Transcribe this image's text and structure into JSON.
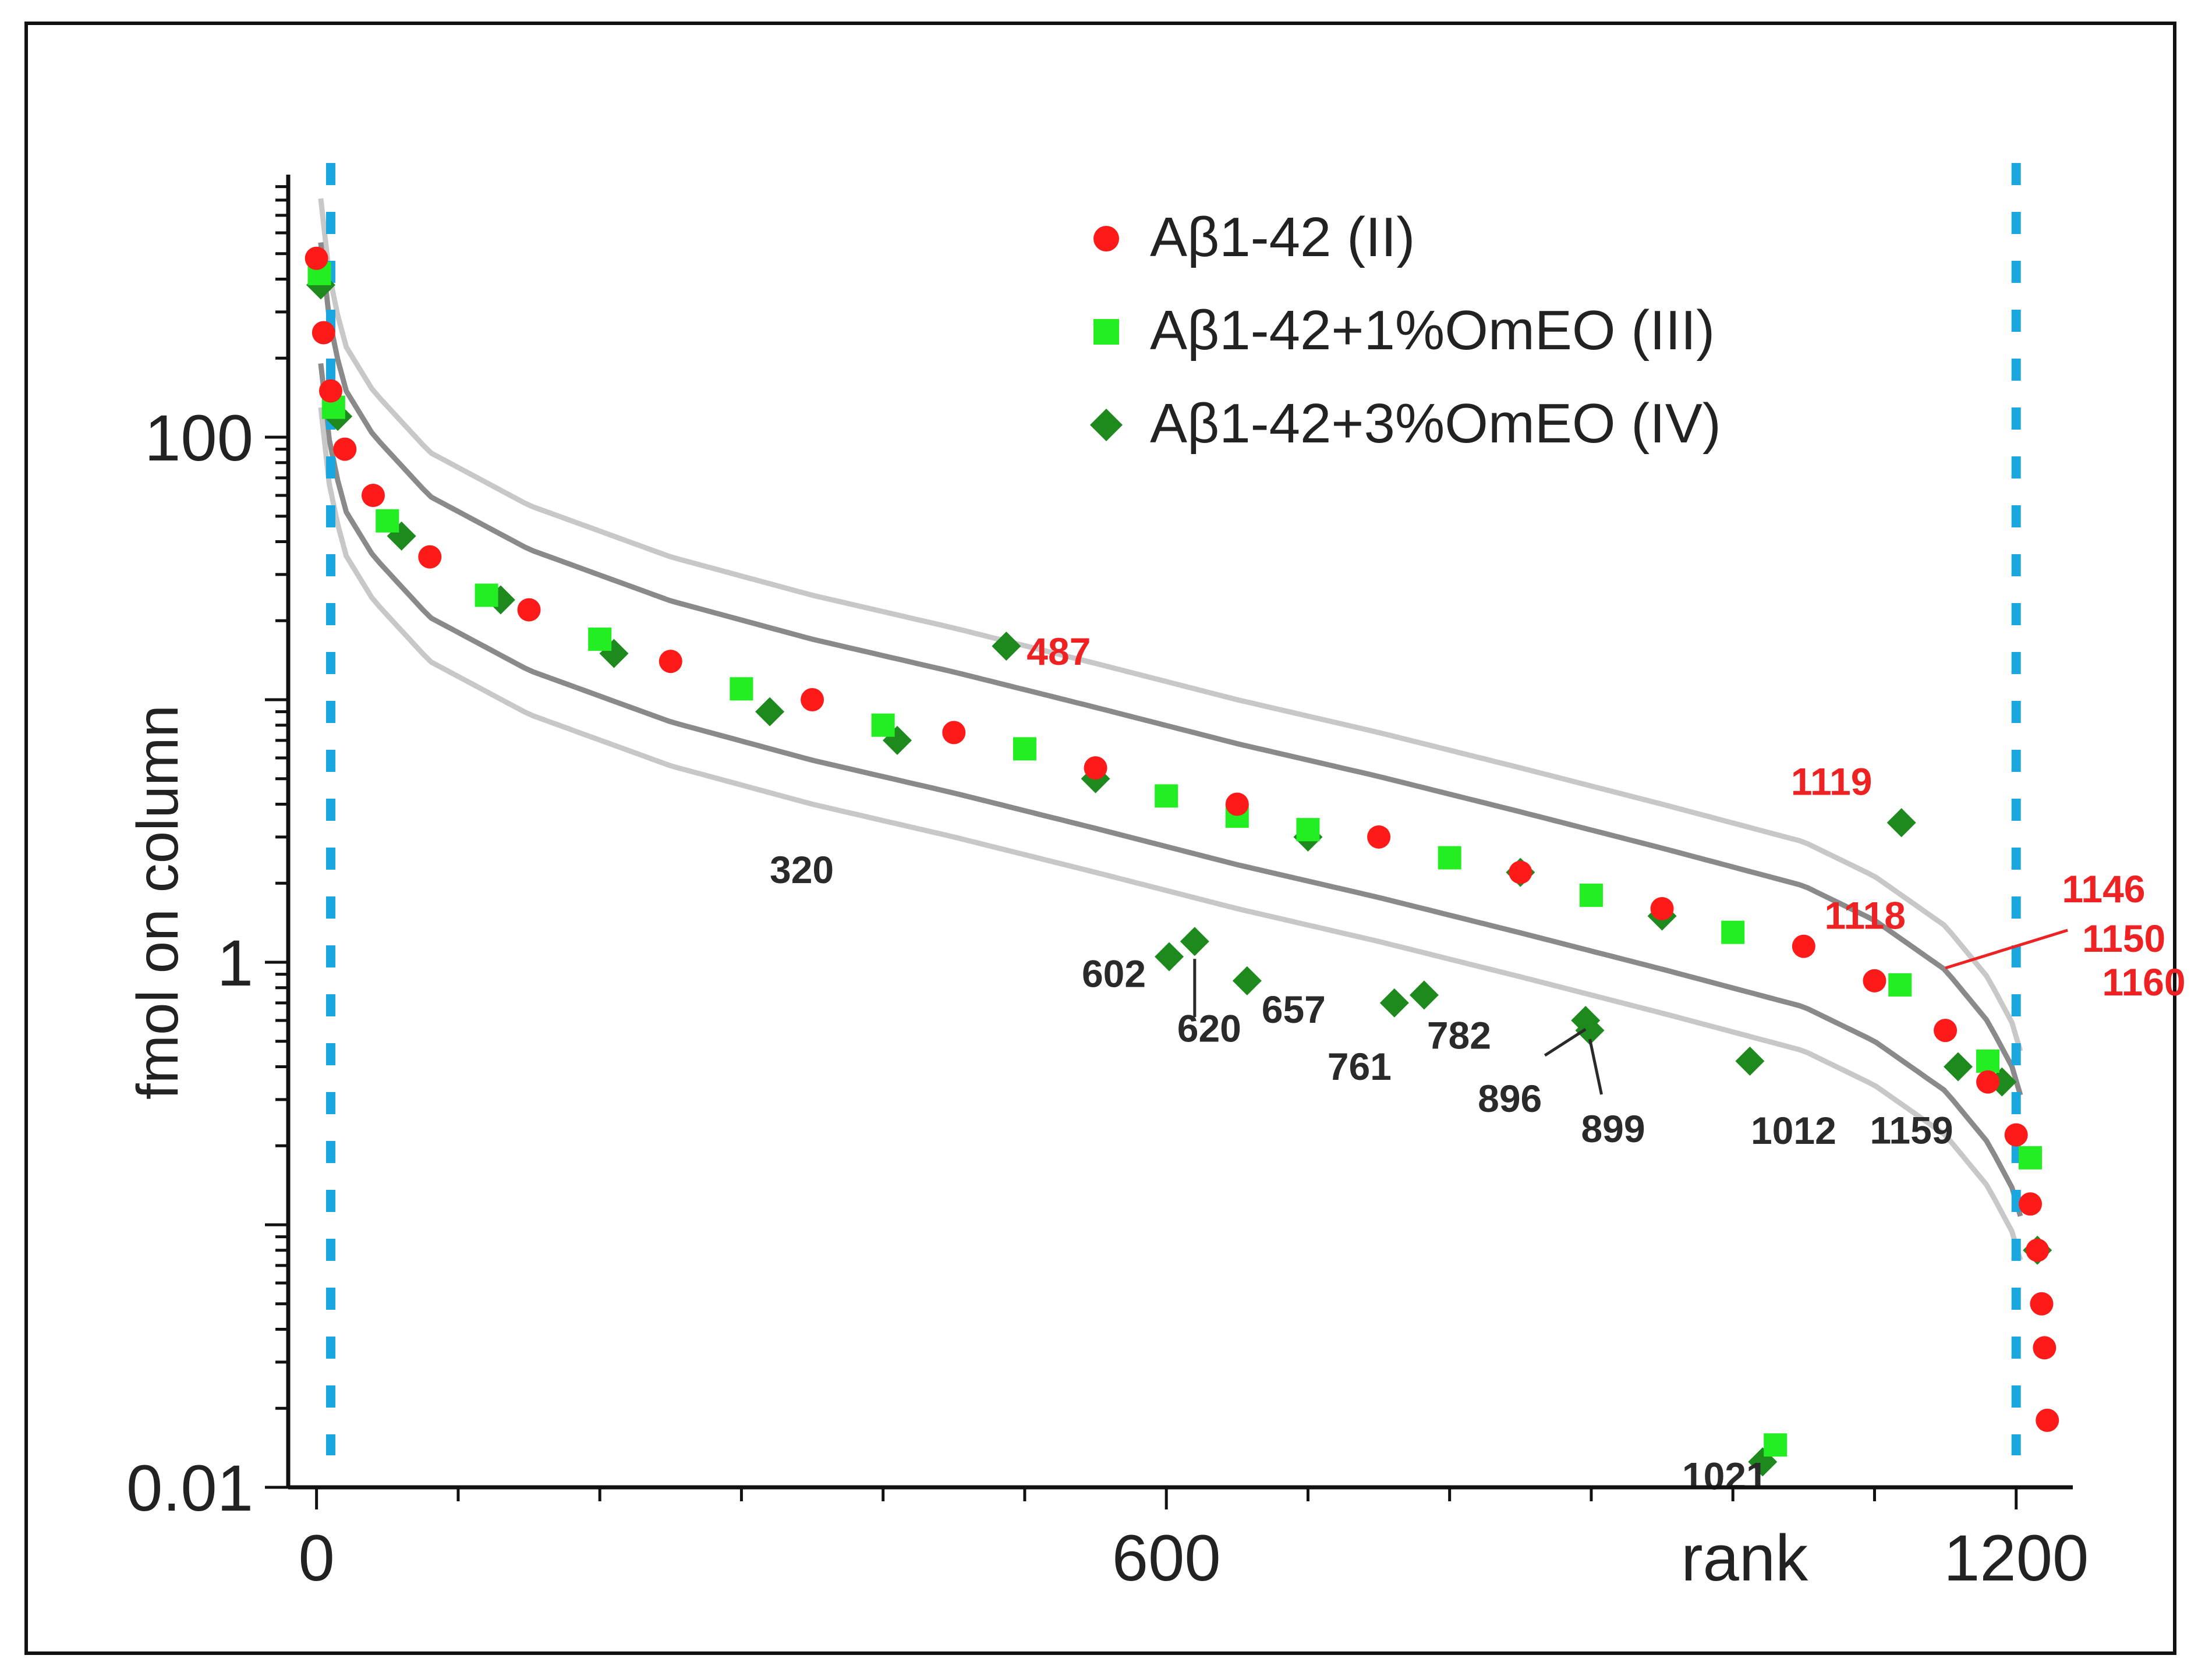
{
  "chart_data": {
    "type": "scatter",
    "xlabel": "rank",
    "ylabel": "fmol on column",
    "x_scale": "linear",
    "y_scale": "log",
    "xlim": [
      -20,
      1240
    ],
    "ylim": [
      0.01,
      1000
    ],
    "x_ticks": [
      0,
      600,
      1200
    ],
    "x_tick_labels": [
      "0",
      "600",
      "1200"
    ],
    "y_ticks": [
      0.01,
      1,
      100
    ],
    "y_tick_labels": [
      "0.01",
      "1",
      "100"
    ],
    "grid": false,
    "legend_position": "top-right",
    "cutoff_lines_x": [
      10,
      1200
    ],
    "series": [
      {
        "name": "Aβ1-42 (II)",
        "marker": "circle",
        "color": "#ff1a1a",
        "points": [
          [
            0,
            480
          ],
          [
            5,
            250
          ],
          [
            10,
            150
          ],
          [
            20,
            90
          ],
          [
            40,
            60
          ],
          [
            80,
            35
          ],
          [
            150,
            22
          ],
          [
            250,
            14
          ],
          [
            350,
            10
          ],
          [
            450,
            7.5
          ],
          [
            550,
            5.5
          ],
          [
            650,
            4
          ],
          [
            750,
            3
          ],
          [
            850,
            2.2
          ],
          [
            950,
            1.6
          ],
          [
            1050,
            1.15
          ],
          [
            1100,
            0.85
          ],
          [
            1150,
            0.55
          ],
          [
            1180,
            0.35
          ],
          [
            1200,
            0.22
          ],
          [
            1210,
            0.12
          ],
          [
            1215,
            0.08
          ],
          [
            1218,
            0.05
          ],
          [
            1220,
            0.034
          ],
          [
            1222,
            0.018
          ]
        ]
      },
      {
        "name": "Aβ1-42+1%OmEO (III)",
        "marker": "square",
        "color": "#22ee22",
        "points": [
          [
            2,
            420
          ],
          [
            12,
            130
          ],
          [
            50,
            48
          ],
          [
            120,
            25
          ],
          [
            200,
            17
          ],
          [
            300,
            11
          ],
          [
            400,
            8
          ],
          [
            500,
            6.5
          ],
          [
            600,
            4.3
          ],
          [
            650,
            3.6
          ],
          [
            700,
            3.2
          ],
          [
            800,
            2.5
          ],
          [
            900,
            1.8
          ],
          [
            1000,
            1.3
          ],
          [
            1030,
            0.0145
          ],
          [
            1118,
            0.82
          ],
          [
            1180,
            0.42
          ],
          [
            1210,
            0.18
          ]
        ]
      },
      {
        "name": "Aβ1-42+3%OmEO (IV)",
        "marker": "diamond",
        "color": "#1e8a1e",
        "points": [
          [
            3,
            380
          ],
          [
            15,
            120
          ],
          [
            60,
            42
          ],
          [
            130,
            24
          ],
          [
            210,
            15
          ],
          [
            320,
            9
          ],
          [
            410,
            7
          ],
          [
            487,
            16
          ],
          [
            550,
            5
          ],
          [
            602,
            1.05
          ],
          [
            620,
            1.2
          ],
          [
            657,
            0.85
          ],
          [
            700,
            3
          ],
          [
            761,
            0.7
          ],
          [
            782,
            0.75
          ],
          [
            850,
            2.2
          ],
          [
            896,
            0.6
          ],
          [
            899,
            0.55
          ],
          [
            950,
            1.5
          ],
          [
            1012,
            0.42
          ],
          [
            1021,
            0.0125
          ],
          [
            1119,
            3.4
          ],
          [
            1159,
            0.4
          ],
          [
            1190,
            0.35
          ],
          [
            1215,
            0.08
          ]
        ]
      }
    ],
    "annotations": [
      {
        "text": "487",
        "color": "red",
        "x": 487,
        "y": 16
      },
      {
        "text": "1119",
        "color": "red",
        "x": 1119,
        "y": 3.4
      },
      {
        "text": "1118",
        "color": "red",
        "x": 1118,
        "y": 1.5
      },
      {
        "text": "1146",
        "color": "red",
        "x": 1146,
        "y": 1.0
      },
      {
        "text": "1150",
        "color": "red",
        "x": 1150,
        "y": 1.0
      },
      {
        "text": "1160",
        "color": "red",
        "x": 1160,
        "y": 1.0
      },
      {
        "text": "320",
        "color": "dark",
        "x": 320,
        "y": 3.2
      },
      {
        "text": "602",
        "color": "dark",
        "x": 602,
        "y": 1.05
      },
      {
        "text": "620",
        "color": "dark",
        "x": 620,
        "y": 1.2
      },
      {
        "text": "657",
        "color": "dark",
        "x": 657,
        "y": 0.85
      },
      {
        "text": "761",
        "color": "dark",
        "x": 761,
        "y": 0.7
      },
      {
        "text": "782",
        "color": "dark",
        "x": 782,
        "y": 0.75
      },
      {
        "text": "896",
        "color": "dark",
        "x": 896,
        "y": 0.6
      },
      {
        "text": "899",
        "color": "dark",
        "x": 899,
        "y": 0.55
      },
      {
        "text": "1012",
        "color": "dark",
        "x": 1012,
        "y": 0.42
      },
      {
        "text": "1021",
        "color": "dark",
        "x": 1021,
        "y": 0.0125
      },
      {
        "text": "1159",
        "color": "dark",
        "x": 1159,
        "y": 0.4
      }
    ]
  }
}
